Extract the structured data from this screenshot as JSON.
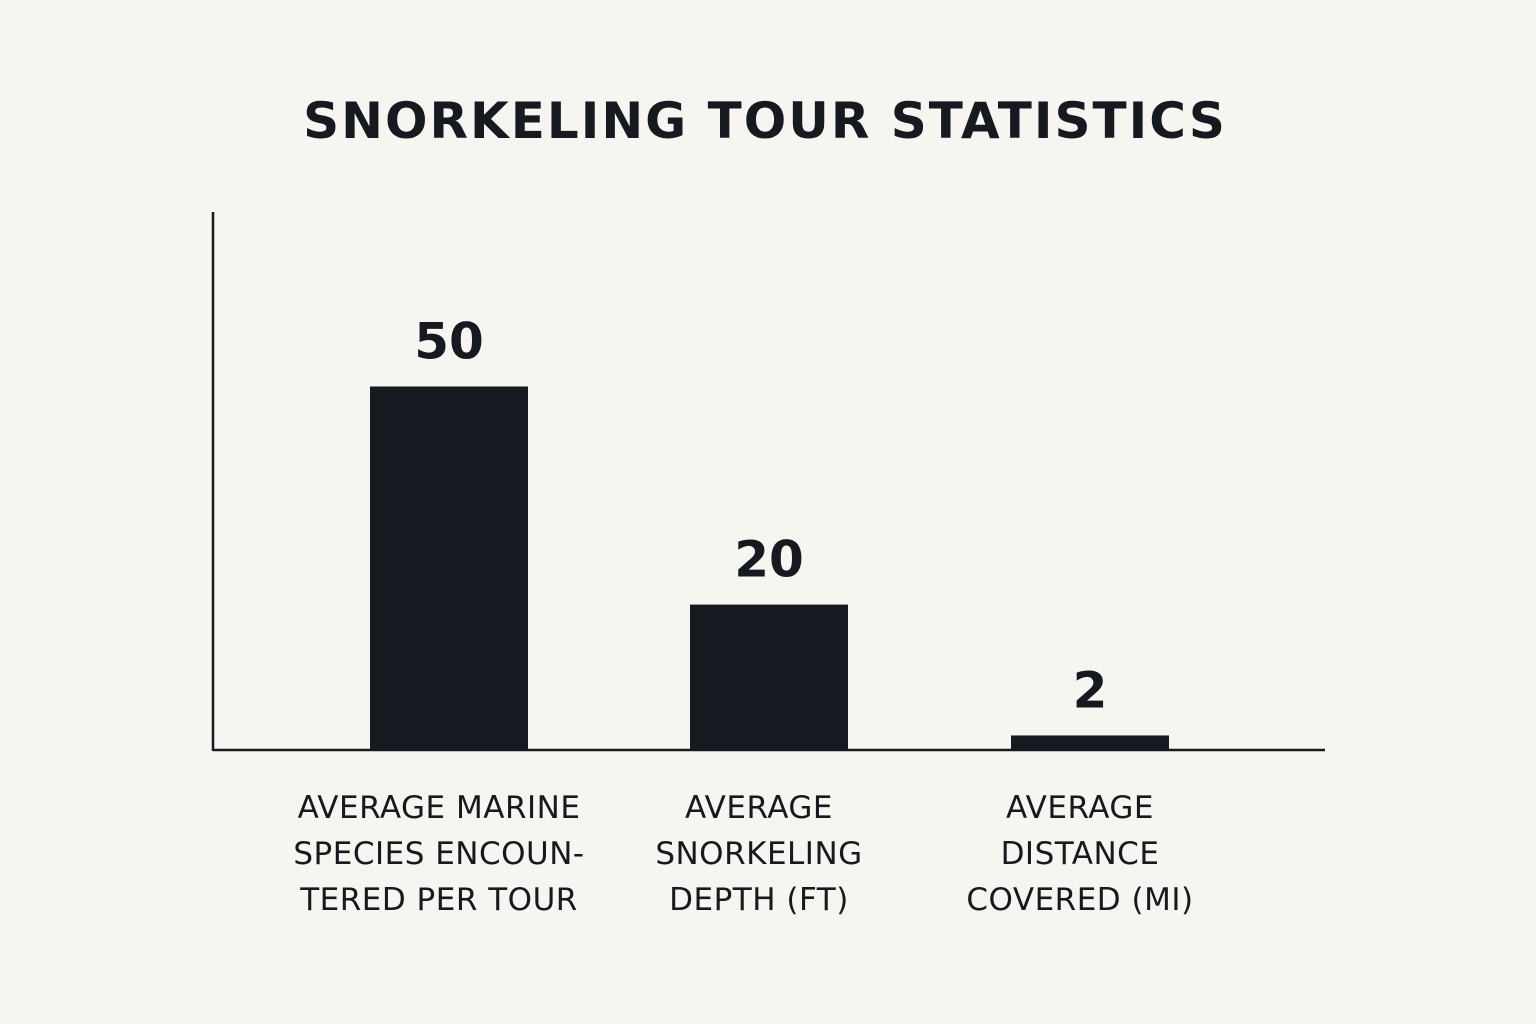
{
  "chart_data": {
    "type": "bar",
    "title": "SNORKELING TOUR STATISTICS",
    "xlabel": "",
    "ylabel": "",
    "categories": [
      "AVERAGE MARINE SPECIES ENCOUN- TERED PER TOUR",
      "AVERAGE SNORKELING DEPTH (FT)",
      "AVERAGE DISTANCE COVERED (MI)"
    ],
    "category_lines": [
      [
        "AVERAGE MARINE",
        "SPECIES ENCOUN-",
        "TERED PER TOUR"
      ],
      [
        "AVERAGE",
        "SNORKELING",
        "DEPTH (FT)"
      ],
      [
        "AVERAGE",
        "DISTANCE",
        "COVERED (MI)"
      ]
    ],
    "values": [
      50,
      20,
      2
    ],
    "value_labels": [
      "50",
      "20",
      "2"
    ],
    "ylim": [
      0,
      74
    ],
    "grid": false,
    "legend": "none",
    "y_ticks_shown": false
  },
  "colors": {
    "background": "#f7f5f0",
    "bar": "#141a1f",
    "axis": "#141a1f",
    "text": "#141a1f"
  }
}
